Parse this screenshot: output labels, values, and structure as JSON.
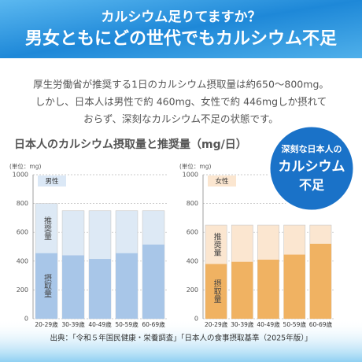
{
  "header": {
    "title_line1": "カルシウム足りてますか？",
    "title_line2": "男女ともにどの世代でもカルシウム不足"
  },
  "body": {
    "lines": [
      "厚生労働省が推奨する1日のカルシウム摂取量は約650～800mg。",
      "しかし、日本人は男性で約 460mg、女性で約 446mgしか摂れて",
      "おらず、深刻なカルシウム不足の状態です。"
    ]
  },
  "chart_heading": "日本人のカルシウム摂取量と推奨量（mg/日）",
  "badge": {
    "lines": [
      "深刻な日本人の",
      "カルシウム",
      "不足"
    ]
  },
  "source": "出典：「令和５年国民健康・栄養調査」「日本人の食事摂取基準（2025年版）」",
  "chart_data": [
    {
      "type": "bar",
      "title": "男性",
      "y_label": "(単位：mg)",
      "categories": [
        "20-29歳",
        "30-39歳",
        "40-49歳",
        "50-59歳",
        "60-69歳"
      ],
      "series": [
        {
          "name": "推奨量",
          "color": "#dde9f5",
          "values": [
            800,
            750,
            750,
            750,
            750
          ]
        },
        {
          "name": "摂取量",
          "color": "#a8c6e8",
          "values": [
            455,
            440,
            415,
            455,
            515
          ]
        }
      ],
      "ylim": [
        0,
        1000
      ],
      "yticks": [
        0,
        200,
        400,
        600,
        800,
        1000
      ],
      "grid": true
    },
    {
      "type": "bar",
      "title": "女性",
      "y_label": "(単位：mg)",
      "categories": [
        "20-29歳",
        "30-39歳",
        "40-49歳",
        "50-59歳",
        "60-69歳"
      ],
      "series": [
        {
          "name": "推奨量",
          "color": "#fbe6d0",
          "values": [
            650,
            650,
            650,
            650,
            650
          ]
        },
        {
          "name": "摂取量",
          "color": "#f0b262",
          "values": [
            380,
            395,
            410,
            445,
            520
          ]
        }
      ],
      "ylim": [
        0,
        1000
      ],
      "yticks": [
        0,
        200,
        400,
        600,
        800,
        1000
      ],
      "grid": true
    }
  ]
}
